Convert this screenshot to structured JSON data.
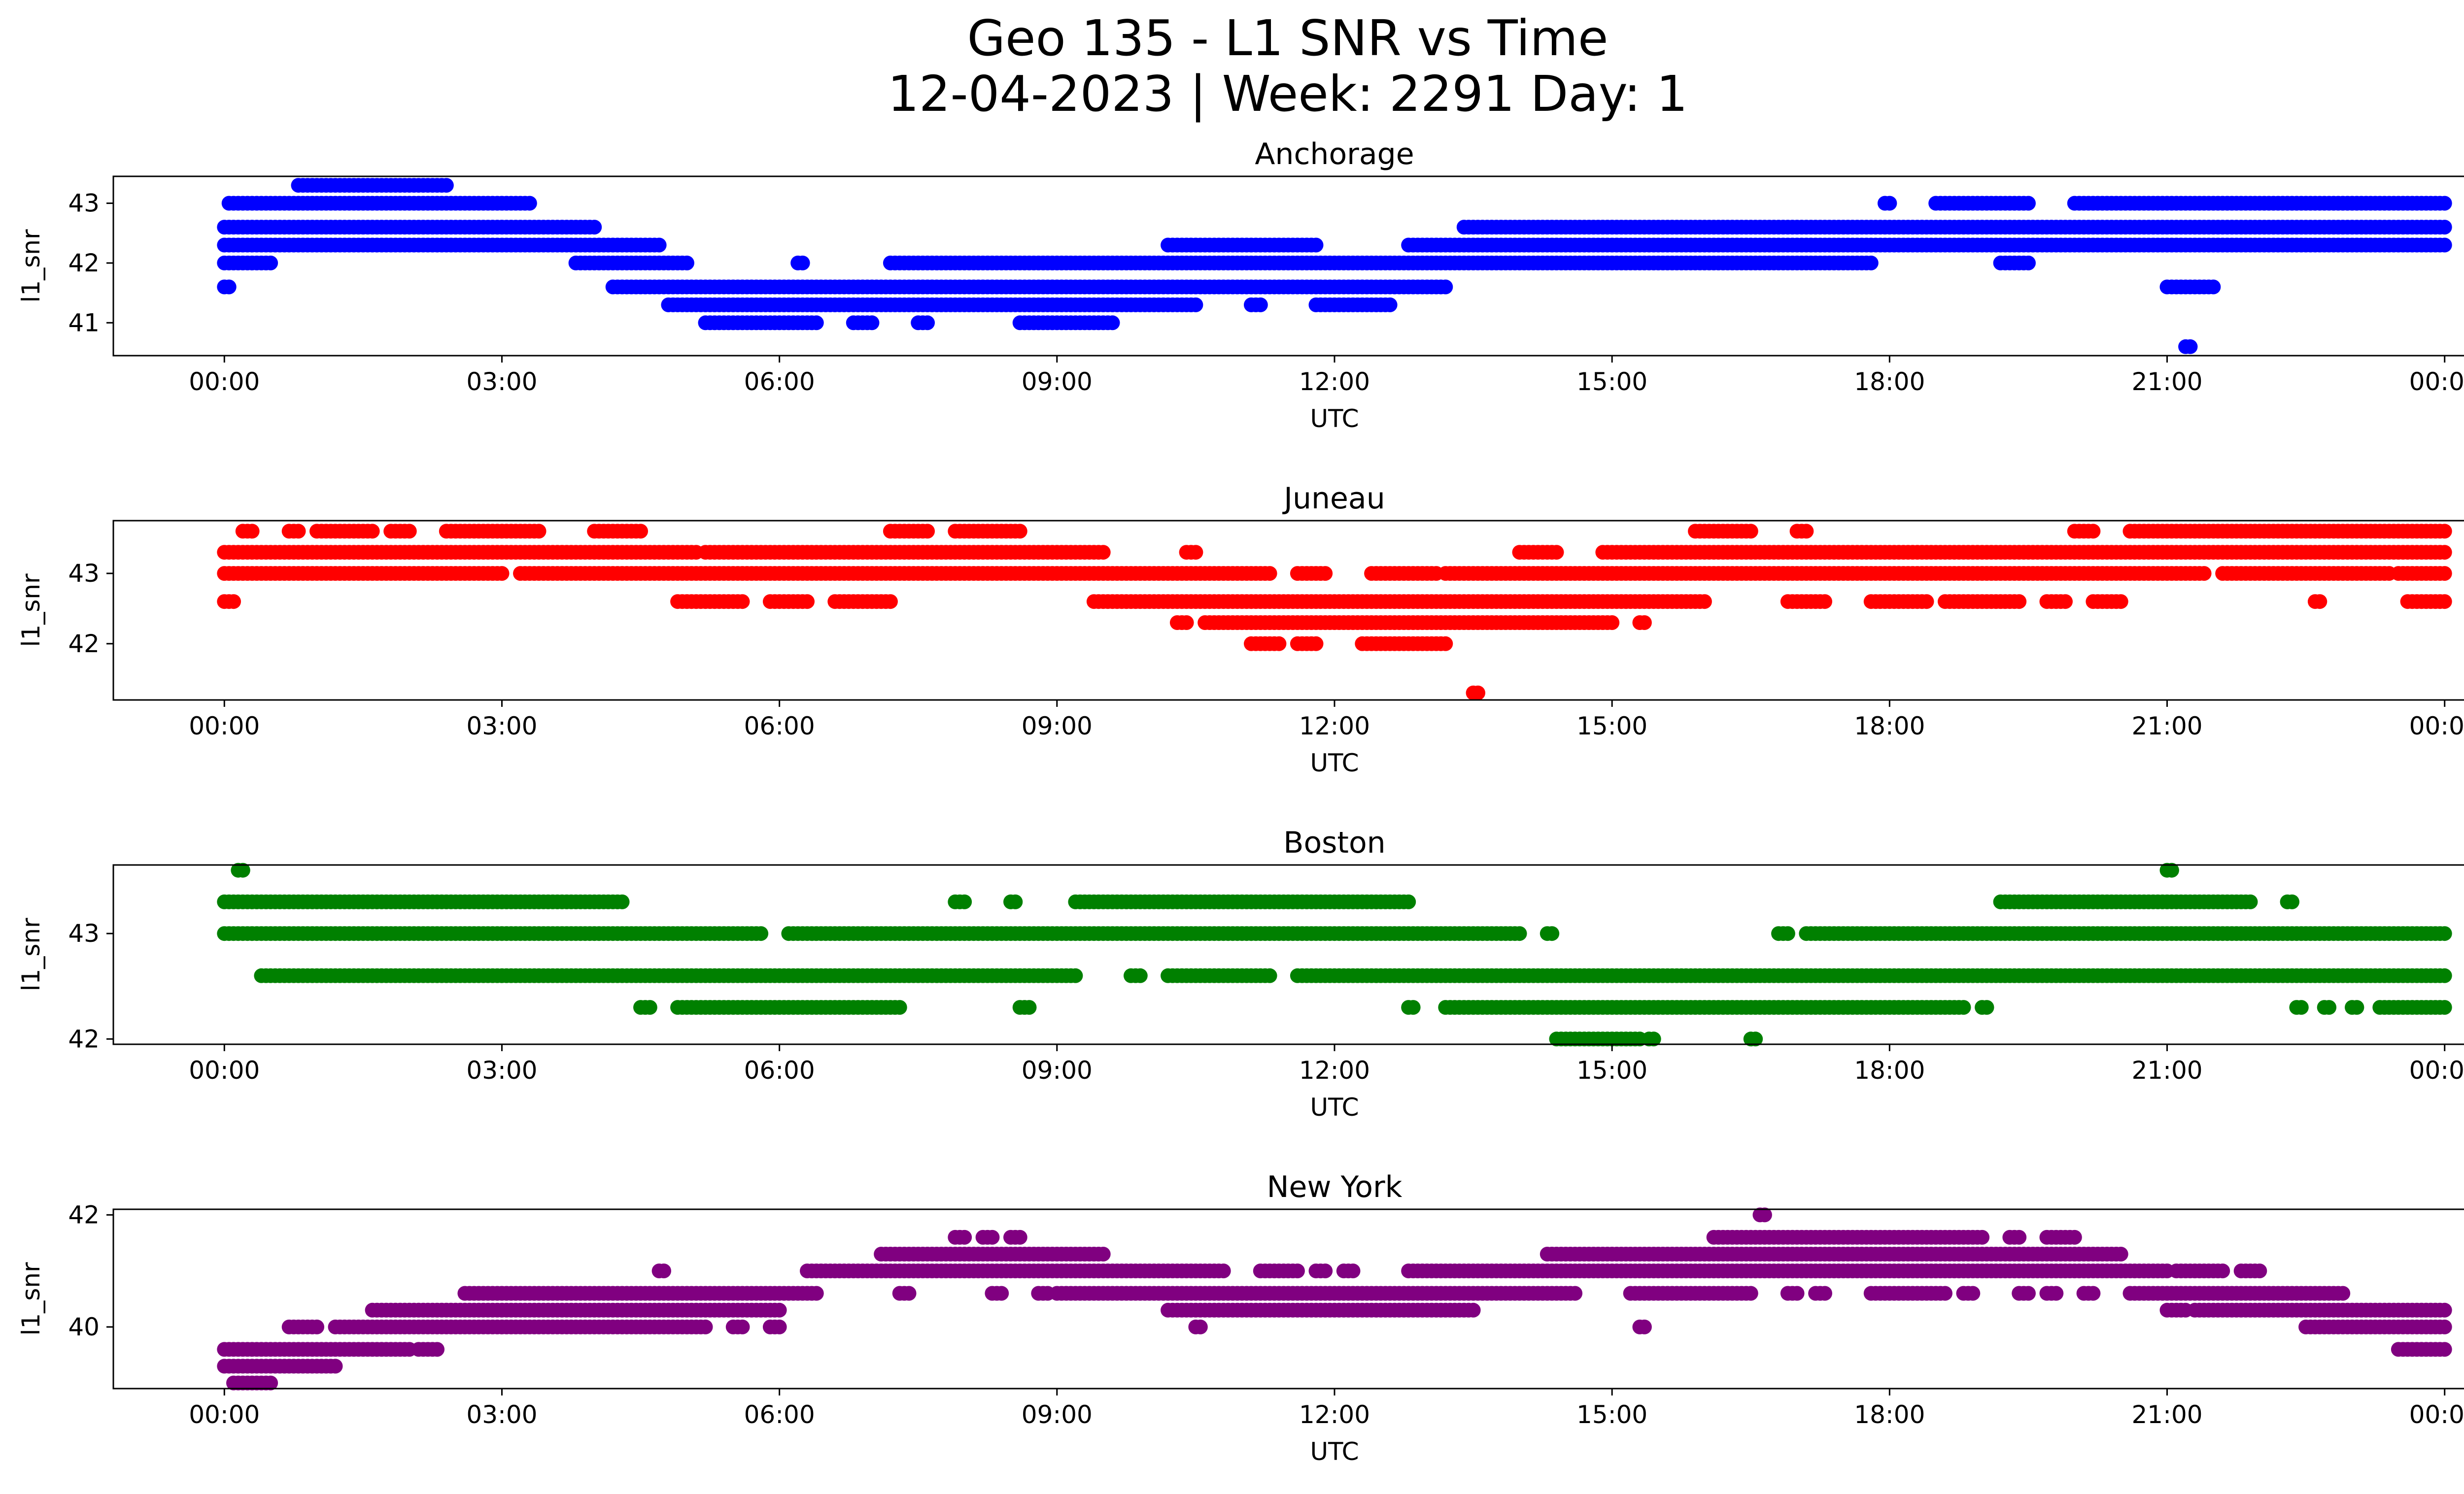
{
  "chart_data": [
    {
      "type": "scatter",
      "title": "Anchorage",
      "xlabel": "UTC",
      "ylabel": "l1_snr",
      "color": "#0000ff",
      "xlim_hours": [
        -1.2,
        25.2
      ],
      "ylim": [
        40.45,
        43.45
      ],
      "yticks": [
        41,
        42,
        43
      ],
      "xticks": [
        "00:00",
        "03:00",
        "06:00",
        "09:00",
        "12:00",
        "15:00",
        "18:00",
        "21:00",
        "00:00"
      ],
      "series": [
        {
          "y": 43.3,
          "segments": [
            [
              0.8,
              2.4
            ]
          ]
        },
        {
          "y": 43.0,
          "segments": [
            [
              0.05,
              3.3
            ],
            [
              17.95,
              18.0
            ],
            [
              18.5,
              19.5
            ],
            [
              20.0,
              24.0
            ]
          ]
        },
        {
          "y": 42.6,
          "segments": [
            [
              0.0,
              4.0
            ],
            [
              13.4,
              24.0
            ]
          ]
        },
        {
          "y": 42.3,
          "segments": [
            [
              0.0,
              4.7
            ],
            [
              10.2,
              11.8
            ],
            [
              12.8,
              24.0
            ]
          ]
        },
        {
          "y": 42.0,
          "segments": [
            [
              0.0,
              0.5
            ],
            [
              3.8,
              5.0
            ],
            [
              6.2,
              6.25
            ],
            [
              7.2,
              17.8
            ],
            [
              19.2,
              19.5
            ]
          ]
        },
        {
          "y": 41.6,
          "segments": [
            [
              0.0,
              0.05
            ],
            [
              4.2,
              13.2
            ],
            [
              21.0,
              21.5
            ]
          ]
        },
        {
          "y": 41.3,
          "segments": [
            [
              4.8,
              10.5
            ],
            [
              11.1,
              11.2
            ],
            [
              11.8,
              12.6
            ]
          ]
        },
        {
          "y": 41.0,
          "segments": [
            [
              5.2,
              6.4
            ],
            [
              6.8,
              7.0
            ],
            [
              7.5,
              7.6
            ],
            [
              8.6,
              9.6
            ]
          ]
        },
        {
          "y": 40.6,
          "segments": [
            [
              21.2,
              21.25
            ]
          ]
        }
      ]
    },
    {
      "type": "scatter",
      "title": "Juneau",
      "xlabel": "UTC",
      "ylabel": "l1_snr",
      "color": "#ff0000",
      "xlim_hours": [
        -1.2,
        25.2
      ],
      "ylim": [
        41.2,
        43.75
      ],
      "yticks": [
        42,
        43
      ],
      "xticks": [
        "00:00",
        "03:00",
        "06:00",
        "09:00",
        "12:00",
        "15:00",
        "18:00",
        "21:00",
        "00:00"
      ],
      "series": [
        {
          "y": 43.6,
          "segments": [
            [
              0.2,
              0.3
            ],
            [
              0.7,
              0.8
            ],
            [
              1.0,
              1.6
            ],
            [
              1.8,
              2.0
            ],
            [
              2.4,
              3.4
            ],
            [
              4.0,
              4.5
            ],
            [
              7.2,
              7.6
            ],
            [
              7.9,
              8.6
            ],
            [
              15.9,
              16.5
            ],
            [
              17.0,
              17.1
            ],
            [
              20.0,
              20.2
            ],
            [
              20.6,
              24.0
            ]
          ]
        },
        {
          "y": 43.3,
          "segments": [
            [
              0.0,
              5.1
            ],
            [
              5.2,
              9.5
            ],
            [
              10.4,
              10.5
            ],
            [
              14.0,
              14.4
            ],
            [
              14.9,
              24.0
            ]
          ]
        },
        {
          "y": 43.0,
          "segments": [
            [
              0.0,
              3.0
            ],
            [
              3.2,
              11.3
            ],
            [
              11.6,
              11.9
            ],
            [
              12.4,
              13.1
            ],
            [
              13.2,
              21.4
            ],
            [
              21.6,
              23.4
            ],
            [
              23.5,
              24.0
            ]
          ]
        },
        {
          "y": 42.6,
          "segments": [
            [
              0.0,
              0.1
            ],
            [
              4.9,
              5.6
            ],
            [
              5.9,
              6.3
            ],
            [
              6.6,
              7.2
            ],
            [
              9.4,
              16.0
            ],
            [
              16.9,
              17.3
            ],
            [
              17.8,
              18.4
            ],
            [
              18.6,
              19.4
            ],
            [
              19.7,
              19.9
            ],
            [
              20.2,
              20.5
            ],
            [
              22.6,
              22.65
            ],
            [
              23.6,
              24.0
            ]
          ]
        },
        {
          "y": 42.3,
          "segments": [
            [
              10.3,
              10.4
            ],
            [
              10.6,
              15.0
            ],
            [
              15.3,
              15.35
            ]
          ]
        },
        {
          "y": 42.0,
          "segments": [
            [
              11.1,
              11.4
            ],
            [
              11.6,
              11.8
            ],
            [
              12.3,
              13.2
            ]
          ]
        },
        {
          "y": 41.3,
          "segments": [
            [
              13.5,
              13.55
            ]
          ]
        }
      ]
    },
    {
      "type": "scatter",
      "title": "Boston",
      "xlabel": "UTC",
      "ylabel": "l1_snr",
      "color": "#008000",
      "xlim_hours": [
        -1.2,
        25.2
      ],
      "ylim": [
        41.95,
        43.65
      ],
      "yticks": [
        42,
        43
      ],
      "xticks": [
        "00:00",
        "03:00",
        "06:00",
        "09:00",
        "12:00",
        "15:00",
        "18:00",
        "21:00",
        "00:00"
      ],
      "series": [
        {
          "y": 43.6,
          "segments": [
            [
              0.15,
              0.2
            ],
            [
              21.0,
              21.05
            ]
          ]
        },
        {
          "y": 43.3,
          "segments": [
            [
              0.0,
              4.3
            ],
            [
              7.9,
              8.0
            ],
            [
              8.5,
              8.55
            ],
            [
              9.2,
              12.8
            ],
            [
              19.2,
              21.9
            ],
            [
              22.3,
              22.35
            ]
          ]
        },
        {
          "y": 43.0,
          "segments": [
            [
              0.0,
              5.8
            ],
            [
              6.1,
              14.0
            ],
            [
              14.3,
              14.35
            ],
            [
              16.8,
              16.9
            ],
            [
              17.1,
              24.0
            ]
          ]
        },
        {
          "y": 42.6,
          "segments": [
            [
              0.4,
              9.2
            ],
            [
              9.8,
              9.9
            ],
            [
              10.2,
              11.3
            ],
            [
              11.6,
              24.0
            ]
          ]
        },
        {
          "y": 42.3,
          "segments": [
            [
              4.5,
              4.6
            ],
            [
              4.9,
              7.3
            ],
            [
              8.6,
              8.7
            ],
            [
              12.8,
              12.85
            ],
            [
              13.2,
              18.8
            ],
            [
              19.0,
              19.05
            ],
            [
              22.4,
              22.45
            ],
            [
              22.7,
              22.75
            ],
            [
              23.0,
              23.05
            ],
            [
              23.3,
              24.0
            ]
          ]
        },
        {
          "y": 42.0,
          "segments": [
            [
              14.4,
              15.3
            ],
            [
              15.4,
              15.45
            ],
            [
              16.5,
              16.55
            ]
          ]
        }
      ]
    },
    {
      "type": "scatter",
      "title": "New York",
      "xlabel": "UTC",
      "ylabel": "l1_snr",
      "color": "#800080",
      "xlim_hours": [
        -1.2,
        25.2
      ],
      "ylim": [
        38.9,
        42.1
      ],
      "yticks": [
        40,
        42
      ],
      "xticks": [
        "00:00",
        "03:00",
        "06:00",
        "09:00",
        "12:00",
        "15:00",
        "18:00",
        "21:00",
        "00:00"
      ],
      "series": [
        {
          "y": 42.0,
          "segments": [
            [
              16.6,
              16.65
            ]
          ]
        },
        {
          "y": 41.6,
          "segments": [
            [
              7.9,
              8.0
            ],
            [
              8.2,
              8.3
            ],
            [
              8.5,
              8.6
            ],
            [
              16.1,
              19.0
            ],
            [
              19.3,
              19.4
            ],
            [
              19.7,
              20.0
            ]
          ]
        },
        {
          "y": 41.3,
          "segments": [
            [
              7.1,
              9.5
            ],
            [
              14.3,
              20.5
            ]
          ]
        },
        {
          "y": 41.0,
          "segments": [
            [
              4.7,
              4.75
            ],
            [
              6.3,
              10.8
            ],
            [
              11.2,
              11.6
            ],
            [
              11.8,
              11.9
            ],
            [
              12.1,
              12.2
            ],
            [
              12.8,
              21.0
            ],
            [
              21.1,
              21.6
            ],
            [
              21.8,
              22.0
            ]
          ]
        },
        {
          "y": 40.6,
          "segments": [
            [
              2.6,
              6.4
            ],
            [
              7.3,
              7.4
            ],
            [
              8.3,
              8.4
            ],
            [
              8.8,
              8.9
            ],
            [
              9.0,
              14.6
            ],
            [
              15.2,
              16.5
            ],
            [
              16.9,
              17.0
            ],
            [
              17.2,
              17.3
            ],
            [
              17.8,
              18.6
            ],
            [
              18.8,
              18.9
            ],
            [
              19.4,
              19.5
            ],
            [
              19.7,
              19.8
            ],
            [
              20.1,
              20.2
            ],
            [
              20.6,
              22.9
            ]
          ]
        },
        {
          "y": 40.3,
          "segments": [
            [
              1.6,
              6.0
            ],
            [
              10.2,
              13.5
            ],
            [
              21.0,
              21.2
            ],
            [
              21.3,
              24.0
            ]
          ]
        },
        {
          "y": 40.0,
          "segments": [
            [
              0.7,
              1.0
            ],
            [
              1.2,
              5.2
            ],
            [
              5.5,
              5.6
            ],
            [
              5.9,
              6.0
            ],
            [
              10.5,
              10.55
            ],
            [
              15.3,
              15.35
            ],
            [
              22.5,
              24.0
            ]
          ]
        },
        {
          "y": 39.6,
          "segments": [
            [
              0.0,
              2.0
            ],
            [
              2.1,
              2.3
            ],
            [
              23.5,
              24.0
            ]
          ]
        },
        {
          "y": 39.3,
          "segments": [
            [
              0.0,
              1.2
            ]
          ]
        },
        {
          "y": 39.0,
          "segments": [
            [
              0.1,
              0.5
            ]
          ]
        }
      ]
    }
  ],
  "figure": {
    "suptitle_line1": "Geo 135 - L1 SNR vs Time",
    "suptitle_line2": "12-04-2023 | Week: 2291 Day: 1"
  }
}
